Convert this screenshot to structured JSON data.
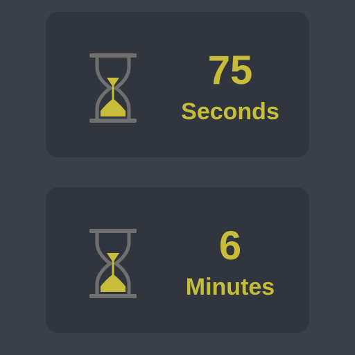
{
  "colors": {
    "background": "#3b4048",
    "card": "#31363e",
    "accent": "#c8bd3a",
    "hourglass_frame": "#6f6f6f"
  },
  "timers": [
    {
      "icon": "hourglass-icon",
      "value": "75",
      "unit": "Seconds"
    },
    {
      "icon": "hourglass-icon",
      "value": "6",
      "unit": "Minutes"
    }
  ]
}
